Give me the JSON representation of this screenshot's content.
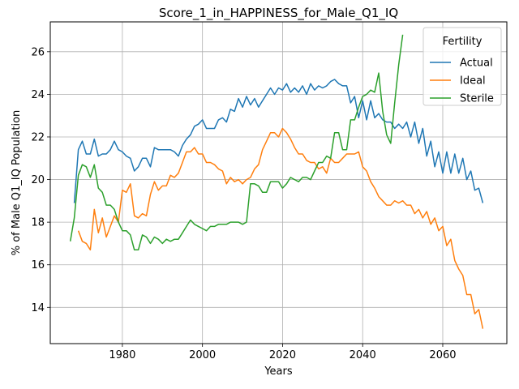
{
  "chart_data": {
    "type": "line",
    "title": "Score_1_in_HAPPINESS_for_Male_Q1_IQ",
    "xlabel": "Years",
    "ylabel": "% of Male Q1_IQ Population",
    "xlim": [
      1962,
      2076
    ],
    "ylim": [
      12.3,
      27.4
    ],
    "xticks": [
      1980,
      2000,
      2020,
      2040,
      2060
    ],
    "yticks": [
      14,
      16,
      18,
      20,
      22,
      24,
      26
    ],
    "grid": true,
    "legend": {
      "title": "Fertility",
      "placement": "top-right"
    },
    "series": [
      {
        "name": "Actual",
        "color": "#1f77b4",
        "x": [
          1968,
          1969,
          1970,
          1971,
          1972,
          1973,
          1974,
          1975,
          1976,
          1977,
          1978,
          1979,
          1980,
          1981,
          1982,
          1983,
          1984,
          1985,
          1986,
          1987,
          1988,
          1989,
          1990,
          1991,
          1992,
          1993,
          1994,
          1995,
          1996,
          1997,
          1998,
          1999,
          2000,
          2001,
          2002,
          2003,
          2004,
          2005,
          2006,
          2007,
          2008,
          2009,
          2010,
          2011,
          2012,
          2013,
          2014,
          2015,
          2016,
          2017,
          2018,
          2019,
          2020,
          2021,
          2022,
          2023,
          2024,
          2025,
          2026,
          2027,
          2028,
          2029,
          2030,
          2031,
          2032,
          2033,
          2034,
          2035,
          2036,
          2037,
          2038,
          2039,
          2040,
          2041,
          2042,
          2043,
          2044,
          2045,
          2046,
          2047,
          2048,
          2049,
          2050,
          2051,
          2052,
          2053,
          2054,
          2055,
          2056,
          2057,
          2058,
          2059,
          2060,
          2061,
          2062,
          2063,
          2064,
          2065,
          2066,
          2067,
          2068,
          2069,
          2070
        ],
        "y": [
          18.9,
          21.4,
          21.8,
          21.2,
          21.2,
          21.9,
          21.1,
          21.2,
          21.2,
          21.4,
          21.8,
          21.4,
          21.3,
          21.1,
          21.0,
          20.4,
          20.6,
          21.0,
          21.0,
          20.6,
          21.5,
          21.4,
          21.4,
          21.4,
          21.4,
          21.3,
          21.1,
          21.6,
          21.9,
          22.1,
          22.5,
          22.6,
          22.8,
          22.4,
          22.4,
          22.4,
          22.8,
          22.9,
          22.7,
          23.3,
          23.2,
          23.8,
          23.4,
          23.9,
          23.5,
          23.8,
          23.4,
          23.7,
          24.0,
          24.3,
          24.0,
          24.3,
          24.2,
          24.5,
          24.1,
          24.3,
          24.1,
          24.4,
          24.0,
          24.5,
          24.2,
          24.4,
          24.3,
          24.4,
          24.6,
          24.7,
          24.5,
          24.4,
          24.4,
          23.6,
          23.9,
          22.9,
          23.7,
          22.8,
          23.7,
          22.9,
          23.1,
          22.8,
          22.7,
          22.7,
          22.4,
          22.6,
          22.4,
          22.7,
          22.0,
          22.7,
          21.7,
          22.4,
          21.1,
          21.8,
          20.6,
          21.3,
          20.3,
          21.3,
          20.3,
          21.2,
          20.3,
          21.0,
          20.0,
          20.4,
          19.5,
          19.6,
          18.9
        ]
      },
      {
        "name": "Ideal",
        "color": "#ff7f0e",
        "x": [
          1969,
          1970,
          1971,
          1972,
          1973,
          1974,
          1975,
          1976,
          1977,
          1978,
          1979,
          1980,
          1981,
          1982,
          1983,
          1984,
          1985,
          1986,
          1987,
          1988,
          1989,
          1990,
          1991,
          1992,
          1993,
          1994,
          1995,
          1996,
          1997,
          1998,
          1999,
          2000,
          2001,
          2002,
          2003,
          2004,
          2005,
          2006,
          2007,
          2008,
          2009,
          2010,
          2011,
          2012,
          2013,
          2014,
          2015,
          2016,
          2017,
          2018,
          2019,
          2020,
          2021,
          2022,
          2023,
          2024,
          2025,
          2026,
          2027,
          2028,
          2029,
          2030,
          2031,
          2032,
          2033,
          2034,
          2035,
          2036,
          2037,
          2038,
          2039,
          2040,
          2041,
          2042,
          2043,
          2044,
          2045,
          2046,
          2047,
          2048,
          2049,
          2050,
          2051,
          2052,
          2053,
          2054,
          2055,
          2056,
          2057,
          2058,
          2059,
          2060,
          2061,
          2062,
          2063,
          2064,
          2065,
          2066,
          2067,
          2068,
          2069,
          2070
        ],
        "y": [
          17.6,
          17.1,
          17.0,
          16.7,
          18.6,
          17.5,
          18.2,
          17.3,
          17.8,
          18.3,
          18.0,
          19.5,
          19.4,
          19.8,
          18.3,
          18.2,
          18.4,
          18.3,
          19.3,
          19.9,
          19.5,
          19.7,
          19.7,
          20.2,
          20.1,
          20.3,
          20.8,
          21.3,
          21.3,
          21.5,
          21.2,
          21.2,
          20.8,
          20.8,
          20.7,
          20.5,
          20.4,
          19.8,
          20.1,
          19.9,
          20.0,
          19.8,
          20.0,
          20.1,
          20.5,
          20.7,
          21.4,
          21.8,
          22.2,
          22.2,
          22.0,
          22.4,
          22.2,
          21.9,
          21.5,
          21.2,
          21.2,
          20.9,
          20.8,
          20.8,
          20.5,
          20.6,
          20.3,
          21.0,
          20.8,
          20.8,
          21.0,
          21.2,
          21.2,
          21.2,
          21.3,
          20.6,
          20.4,
          19.9,
          19.6,
          19.2,
          19.0,
          18.8,
          18.8,
          19.0,
          18.9,
          19.0,
          18.8,
          18.8,
          18.4,
          18.6,
          18.2,
          18.5,
          17.9,
          18.2,
          17.6,
          17.8,
          16.9,
          17.2,
          16.2,
          15.8,
          15.5,
          14.6,
          14.6,
          13.7,
          13.9,
          13.0
        ]
      },
      {
        "name": "Sterile",
        "color": "#2ca02c",
        "x": [
          1967,
          1968,
          1969,
          1970,
          1971,
          1972,
          1973,
          1974,
          1975,
          1976,
          1977,
          1978,
          1979,
          1980,
          1981,
          1982,
          1983,
          1984,
          1985,
          1986,
          1987,
          1988,
          1989,
          1990,
          1991,
          1992,
          1993,
          1994,
          1995,
          1996,
          1997,
          1998,
          1999,
          2000,
          2001,
          2002,
          2003,
          2004,
          2005,
          2006,
          2007,
          2008,
          2009,
          2010,
          2011,
          2012,
          2013,
          2014,
          2015,
          2016,
          2017,
          2018,
          2019,
          2020,
          2021,
          2022,
          2023,
          2024,
          2025,
          2026,
          2027,
          2028,
          2029,
          2030,
          2031,
          2032,
          2033,
          2034,
          2035,
          2036,
          2037,
          2038,
          2039,
          2040,
          2041,
          2042,
          2043,
          2044,
          2045,
          2046,
          2047,
          2048,
          2049,
          2050
        ],
        "y": [
          17.1,
          18.2,
          20.2,
          20.7,
          20.6,
          20.1,
          20.7,
          19.6,
          19.4,
          18.8,
          18.8,
          18.6,
          18.0,
          17.6,
          17.6,
          17.4,
          16.7,
          16.7,
          17.4,
          17.3,
          17.0,
          17.3,
          17.2,
          17.0,
          17.2,
          17.1,
          17.2,
          17.2,
          17.5,
          17.8,
          18.1,
          17.9,
          17.8,
          17.7,
          17.6,
          17.8,
          17.8,
          17.9,
          17.9,
          17.9,
          18.0,
          18.0,
          18.0,
          17.9,
          18.0,
          19.8,
          19.8,
          19.7,
          19.4,
          19.4,
          19.9,
          19.9,
          19.9,
          19.6,
          19.8,
          20.1,
          20.0,
          19.9,
          20.1,
          20.1,
          20.0,
          20.4,
          20.8,
          20.8,
          21.1,
          21.0,
          22.2,
          22.2,
          21.4,
          21.4,
          22.8,
          22.8,
          23.4,
          23.9,
          24.0,
          24.2,
          24.1,
          25.0,
          23.2,
          22.1,
          21.7,
          23.6,
          25.4,
          26.8
        ]
      }
    ]
  }
}
